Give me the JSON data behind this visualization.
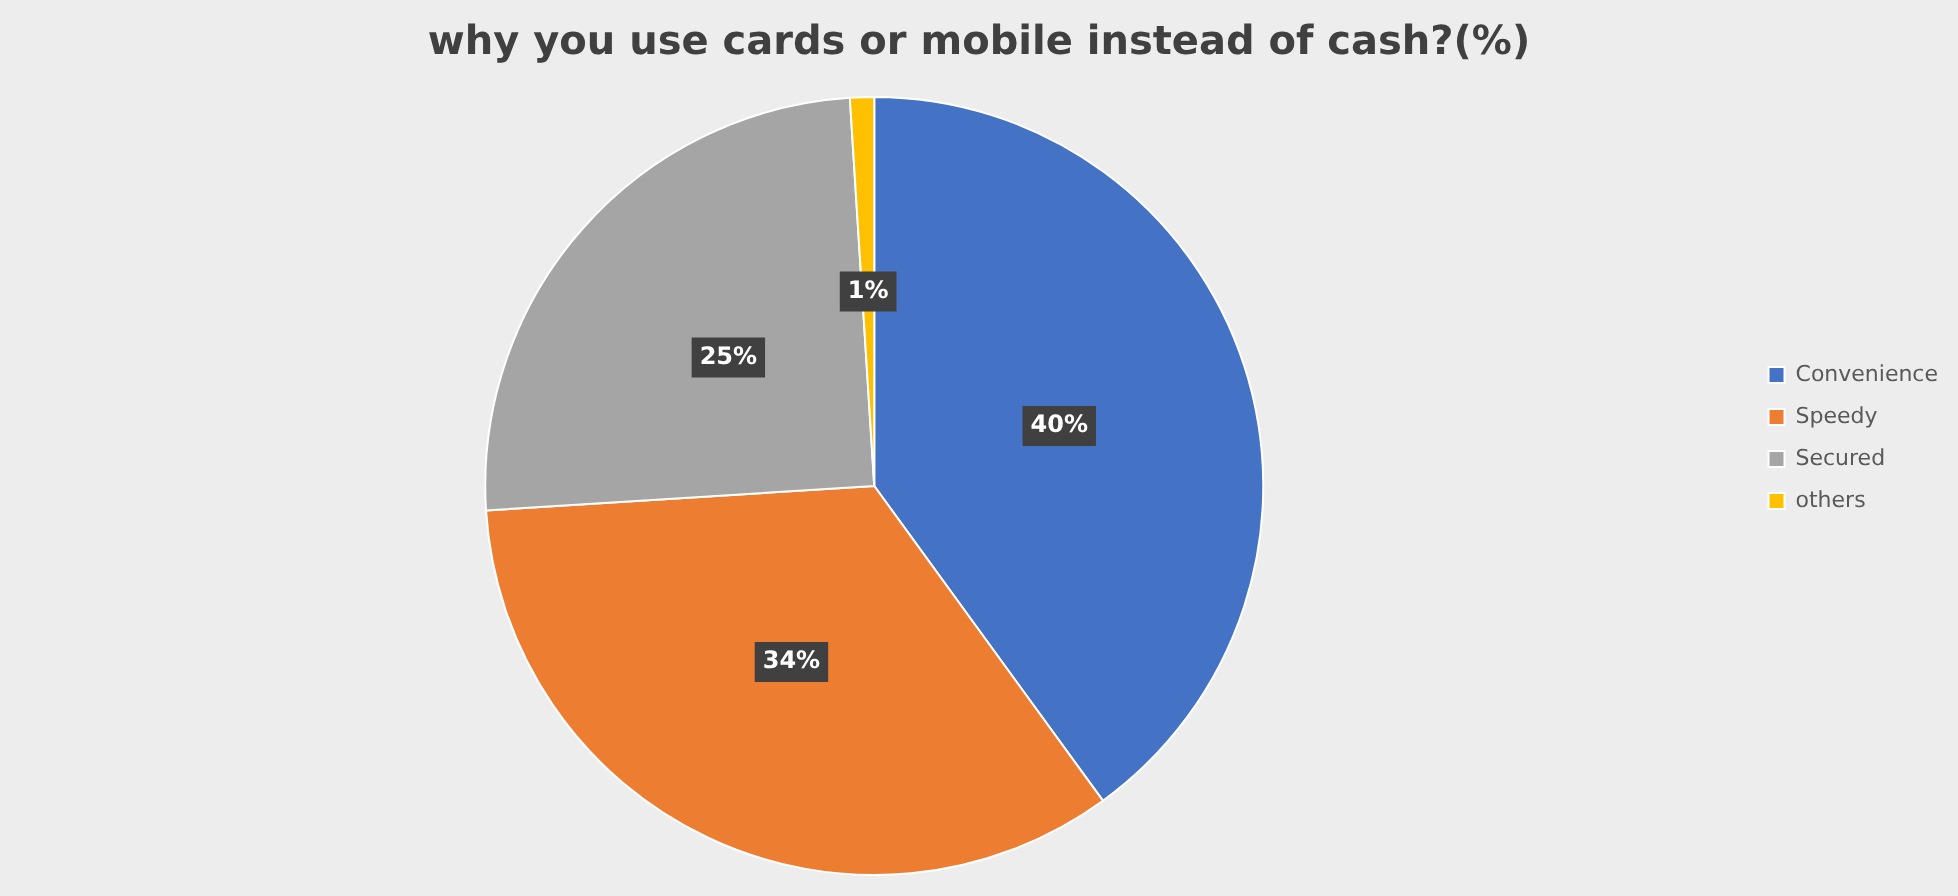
{
  "chart_data": {
    "type": "pie",
    "title": "why you use cards or mobile instead of cash?(%)",
    "categories": [
      "Convenience",
      "Speedy",
      "Secured",
      "others"
    ],
    "values": [
      40,
      34,
      25,
      1
    ],
    "colors": [
      "#4472c4",
      "#ed7d31",
      "#a5a5a5",
      "#ffc000"
    ],
    "value_labels": [
      "40%",
      "34%",
      "25%",
      "1%"
    ],
    "legend": "right"
  }
}
